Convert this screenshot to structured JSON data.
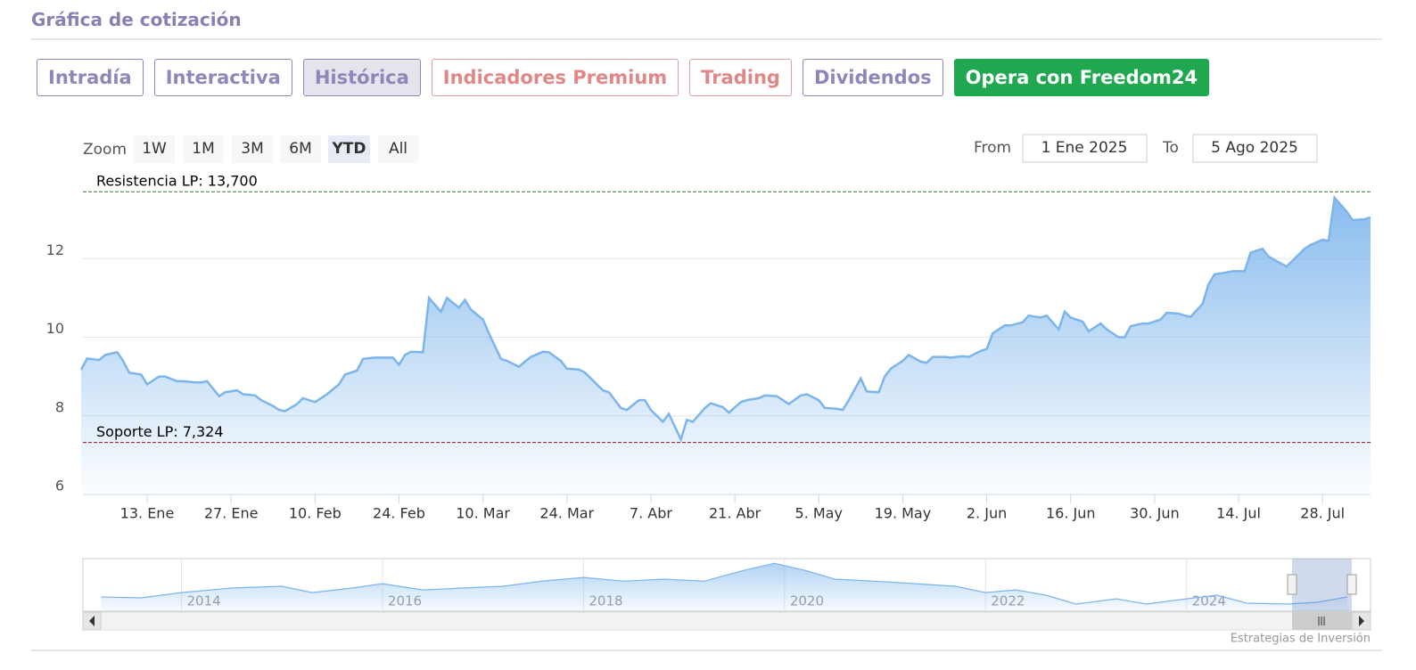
{
  "header": {
    "title": "Gráfica de cotización"
  },
  "tabs": [
    "Intradía",
    "Interactiva",
    "Histórica",
    "Indicadores Premium",
    "Trading",
    "Dividendos",
    "Opera con Freedom24"
  ],
  "zoom": {
    "label": "Zoom",
    "buttons": [
      "1W",
      "1M",
      "3M",
      "6M",
      "YTD",
      "All"
    ],
    "active": 4
  },
  "range": {
    "from_label": "From",
    "from": "1 Ene 2025",
    "to_label": "To",
    "to": "5 Ago 2025"
  },
  "chart_data": {
    "type": "area",
    "color": "#7cb5ec",
    "x": [
      "2025-01-02",
      "2025-01-03",
      "2025-01-05",
      "2025-01-06",
      "2025-01-08",
      "2025-01-09",
      "2025-01-10",
      "2025-01-12",
      "2025-01-13",
      "2025-01-15",
      "2025-01-16",
      "2025-01-18",
      "2025-01-19",
      "2025-01-21",
      "2025-01-22",
      "2025-01-23",
      "2025-01-25",
      "2025-01-26",
      "2025-01-28",
      "2025-01-29",
      "2025-01-31",
      "2025-02-01",
      "2025-02-03",
      "2025-02-04",
      "2025-02-05",
      "2025-02-07",
      "2025-02-08",
      "2025-02-10",
      "2025-02-11",
      "2025-02-12",
      "2025-02-14",
      "2025-02-15",
      "2025-02-17",
      "2025-02-18",
      "2025-02-20",
      "2025-02-21",
      "2025-02-23",
      "2025-02-24",
      "2025-02-25",
      "2025-02-26",
      "2025-02-28",
      "2025-03-01",
      "2025-03-03",
      "2025-03-04",
      "2025-03-06",
      "2025-03-07",
      "2025-03-08",
      "2025-03-10",
      "2025-03-11",
      "2025-03-13",
      "2025-03-14",
      "2025-03-16",
      "2025-03-17",
      "2025-03-18",
      "2025-03-20",
      "2025-03-21",
      "2025-03-23",
      "2025-03-24",
      "2025-03-26",
      "2025-03-27",
      "2025-03-28",
      "2025-03-30",
      "2025-03-31",
      "2025-04-02",
      "2025-04-03",
      "2025-04-05",
      "2025-04-06",
      "2025-04-07",
      "2025-04-09",
      "2025-04-10",
      "2025-04-12",
      "2025-04-13",
      "2025-04-14",
      "2025-04-16",
      "2025-04-17",
      "2025-04-19",
      "2025-04-20",
      "2025-04-22",
      "2025-04-23",
      "2025-04-25",
      "2025-04-26",
      "2025-04-28",
      "2025-04-29",
      "2025-04-30",
      "2025-05-02",
      "2025-05-03",
      "2025-05-05",
      "2025-05-06",
      "2025-05-08",
      "2025-05-09",
      "2025-05-10",
      "2025-05-12",
      "2025-05-13",
      "2025-05-15",
      "2025-05-16",
      "2025-05-17",
      "2025-05-19",
      "2025-05-20",
      "2025-05-22",
      "2025-05-23",
      "2025-05-24",
      "2025-05-26",
      "2025-05-27",
      "2025-05-29",
      "2025-05-30",
      "2025-06-01",
      "2025-06-02",
      "2025-06-03",
      "2025-06-05",
      "2025-06-06",
      "2025-06-08",
      "2025-06-09",
      "2025-06-11",
      "2025-06-12",
      "2025-06-14",
      "2025-06-15",
      "2025-06-16",
      "2025-06-18",
      "2025-06-19",
      "2025-06-21",
      "2025-06-22",
      "2025-06-24",
      "2025-06-25",
      "2025-06-26",
      "2025-06-28",
      "2025-06-29",
      "2025-07-01",
      "2025-07-02",
      "2025-07-04",
      "2025-07-05",
      "2025-07-06",
      "2025-07-08",
      "2025-07-09",
      "2025-07-10",
      "2025-07-12",
      "2025-07-13",
      "2025-07-15",
      "2025-07-16",
      "2025-07-18",
      "2025-07-19",
      "2025-07-21",
      "2025-07-22",
      "2025-07-23",
      "2025-07-25",
      "2025-07-26",
      "2025-07-28",
      "2025-07-29",
      "2025-07-30",
      "2025-08-01",
      "2025-08-02",
      "2025-08-04",
      "2025-08-05"
    ],
    "values": [
      9.17,
      9.46,
      9.42,
      9.55,
      9.62,
      9.4,
      9.1,
      9.05,
      8.8,
      9.0,
      9.0,
      8.88,
      8.88,
      8.85,
      8.85,
      8.88,
      8.5,
      8.6,
      8.65,
      8.55,
      8.52,
      8.4,
      8.25,
      8.15,
      8.12,
      8.3,
      8.45,
      8.35,
      8.45,
      8.55,
      8.8,
      9.05,
      9.15,
      9.45,
      9.48,
      9.48,
      9.48,
      9.3,
      9.55,
      9.63,
      9.62,
      11.0,
      10.65,
      11.0,
      10.75,
      10.95,
      10.7,
      10.45,
      10.1,
      9.45,
      9.4,
      9.25,
      9.38,
      9.5,
      9.63,
      9.62,
      9.4,
      9.2,
      9.18,
      9.1,
      8.95,
      8.65,
      8.6,
      8.2,
      8.15,
      8.4,
      8.4,
      8.15,
      7.85,
      8.05,
      7.4,
      7.9,
      7.85,
      8.2,
      8.32,
      8.22,
      8.08,
      8.35,
      8.4,
      8.45,
      8.52,
      8.5,
      8.4,
      8.3,
      8.52,
      8.55,
      8.4,
      8.2,
      8.18,
      8.15,
      8.4,
      8.95,
      8.62,
      8.6,
      9.0,
      9.2,
      9.4,
      9.55,
      9.38,
      9.35,
      9.5,
      9.5,
      9.48,
      9.52,
      9.5,
      9.65,
      9.7,
      10.1,
      10.3,
      10.3,
      10.38,
      10.55,
      10.5,
      10.55,
      10.2,
      10.65,
      10.5,
      10.4,
      10.15,
      10.35,
      10.2,
      10.0,
      10.0,
      10.28,
      10.35,
      10.35,
      10.45,
      10.62,
      10.6,
      10.55,
      10.52,
      10.85,
      11.35,
      11.6,
      11.65,
      11.68,
      11.68,
      12.15,
      12.25,
      12.05,
      11.88,
      11.8,
      11.95,
      12.25,
      12.35,
      12.48,
      12.45,
      13.55,
      13.2,
      12.98,
      13.0,
      13.05
    ],
    "xlim": [
      "2025-01-02",
      "2025-08-05"
    ],
    "xticks": [
      {
        "value": "2025-01-13",
        "label": "13. Ene"
      },
      {
        "value": "2025-01-27",
        "label": "27. Ene"
      },
      {
        "value": "2025-02-10",
        "label": "10. Feb"
      },
      {
        "value": "2025-02-24",
        "label": "24. Feb"
      },
      {
        "value": "2025-03-10",
        "label": "10. Mar"
      },
      {
        "value": "2025-03-24",
        "label": "24. Mar"
      },
      {
        "value": "2025-04-07",
        "label": "7. Abr"
      },
      {
        "value": "2025-04-21",
        "label": "21. Abr"
      },
      {
        "value": "2025-05-05",
        "label": "5. May"
      },
      {
        "value": "2025-05-19",
        "label": "19. May"
      },
      {
        "value": "2025-06-02",
        "label": "2. Jun"
      },
      {
        "value": "2025-06-16",
        "label": "16. Jun"
      },
      {
        "value": "2025-06-30",
        "label": "30. Jun"
      },
      {
        "value": "2025-07-14",
        "label": "14. Jul"
      },
      {
        "value": "2025-07-28",
        "label": "28. Jul"
      }
    ],
    "ylim": [
      6,
      14
    ],
    "yticks": [
      6,
      8,
      10,
      12
    ],
    "grid": true,
    "plot_lines": [
      {
        "value": 13.7,
        "label": "Resistencia LP: 13,700",
        "color": "#2e7d32"
      },
      {
        "value": 7.324,
        "label": "Soporte LP: 7,324",
        "color": "#8b1a1a"
      }
    ]
  },
  "navigator": {
    "x": [
      2013.2,
      2013.6,
      2014.0,
      2014.5,
      2015.0,
      2015.3,
      2015.7,
      2016.0,
      2016.4,
      2016.8,
      2017.2,
      2017.6,
      2018.0,
      2018.4,
      2018.8,
      2019.2,
      2019.6,
      2019.9,
      2020.2,
      2020.5,
      2020.9,
      2021.3,
      2021.7,
      2022.0,
      2022.3,
      2022.6,
      2022.9,
      2023.3,
      2023.6,
      2024.0,
      2024.3,
      2024.6,
      2025.0,
      2025.3,
      2025.6
    ],
    "values": [
      14.4,
      13.7,
      17.9,
      21.5,
      22.9,
      17.9,
      21.5,
      25,
      20,
      21.5,
      22.9,
      27.1,
      30,
      27,
      28.6,
      27,
      35.7,
      41.3,
      35.7,
      28.6,
      27,
      25,
      22.9,
      17.9,
      20,
      15.8,
      8.7,
      12.9,
      8.7,
      12.9,
      15.8,
      9.4,
      8.7,
      10.1,
      14.4
    ],
    "xlim": [
      2013.02,
      2025.83
    ],
    "ylim": [
      3,
      45
    ],
    "xticks": [
      2014,
      2016,
      2018,
      2020,
      2022,
      2024
    ]
  },
  "credit": "Estrategias de Inversión"
}
